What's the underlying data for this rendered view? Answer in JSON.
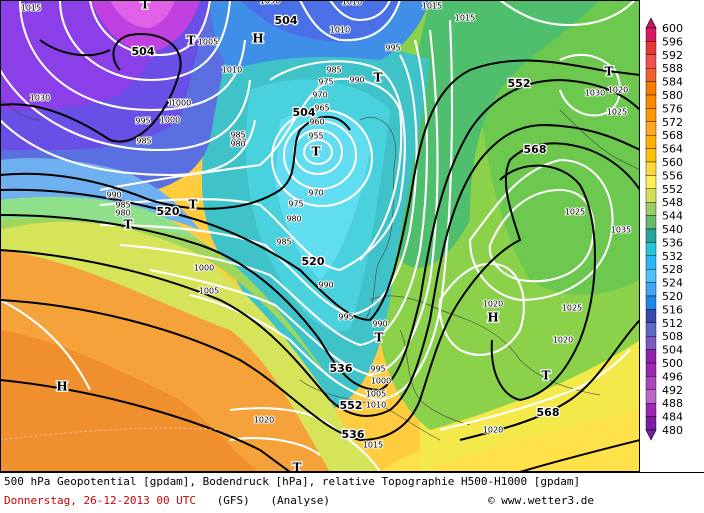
{
  "title_line": "500 hPa Geopotential [gpdam], Bodendruck [hPa], relative Topographie H500-H1000 [gpdam]",
  "date_line": "Donnerstag, 26-12-2013  00 UTC",
  "model": "(GFS)",
  "analysis": "(Analyse)",
  "copyright": "© www.wetter3.de",
  "legend": {
    "values": [
      "600",
      "596",
      "592",
      "588",
      "584",
      "580",
      "576",
      "572",
      "568",
      "564",
      "560",
      "556",
      "552",
      "548",
      "544",
      "540",
      "536",
      "532",
      "528",
      "524",
      "520",
      "516",
      "512",
      "508",
      "504",
      "500",
      "496",
      "492",
      "488",
      "484",
      "480"
    ],
    "colors": [
      "#c2185b",
      "#d81b60",
      "#e53935",
      "#ef5350",
      "#f06030",
      "#f57c00",
      "#fb8c00",
      "#ff9800",
      "#ffa726",
      "#ffb300",
      "#ffc107",
      "#ffd740",
      "#ffee58",
      "#d4e157",
      "#9ccc65",
      "#66bb6a",
      "#26a69a",
      "#26c6da",
      "#29b6f6",
      "#4fc3f7",
      "#42a5f5",
      "#1e88e5",
      "#3949ab",
      "#5c6bc0",
      "#7e57c2",
      "#8e24aa",
      "#9c27b0",
      "#ab47bc",
      "#ba68c8",
      "#9c27b0",
      "#7b1fa2"
    ]
  },
  "map": {
    "geopotential_labels": [
      "504",
      "504",
      "520",
      "520",
      "536",
      "552",
      "568",
      "552",
      "568",
      "536",
      "504"
    ],
    "pressure_labels": [
      "1015",
      "1005",
      "985",
      "1010",
      "1000",
      "995",
      "990",
      "985",
      "980",
      "975",
      "970",
      "965",
      "960",
      "955",
      "1030",
      "995",
      "1000",
      "990",
      "985",
      "980",
      "975",
      "970",
      "980",
      "985",
      "990",
      "995",
      "1000",
      "1005",
      "1000",
      "990",
      "995",
      "1000",
      "1005",
      "1010",
      "1015",
      "1020",
      "1020",
      "1030",
      "1025",
      "1035",
      "1020",
      "1025",
      "1020",
      "1020",
      "1025",
      "1030",
      "1010",
      "1010",
      "1015",
      "1015",
      "985",
      "980"
    ],
    "highs": [
      "H",
      "H",
      "H"
    ],
    "lows": [
      "T",
      "T",
      "T",
      "T",
      "T",
      "T",
      "T",
      "T",
      "T",
      "T"
    ]
  }
}
